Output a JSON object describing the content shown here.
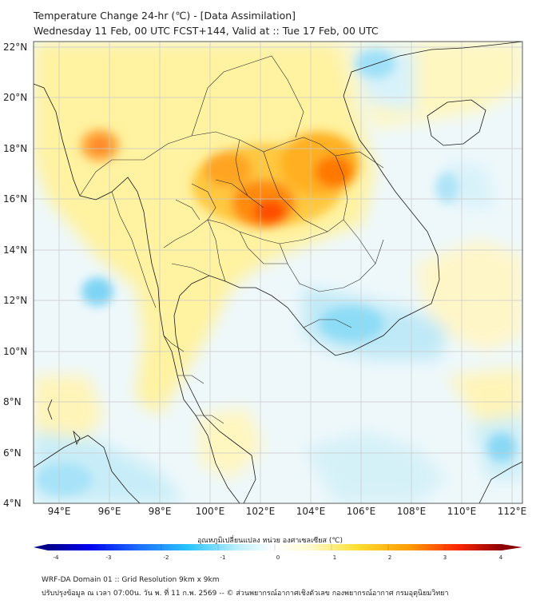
{
  "header": {
    "title": "Temperature Change 24-hr (℃) - [Data Assimilation]",
    "subtitle": "Wednesday 11 Feb, 00 UTC FCST+144, Valid at :: Tue 17 Feb, 00 UTC"
  },
  "map": {
    "lat_labels": [
      "22°N",
      "20°N",
      "18°N",
      "16°N",
      "14°N",
      "12°N",
      "10°N",
      "8°N",
      "6°N",
      "4°N"
    ],
    "lon_labels": [
      "94°E",
      "96°E",
      "98°E",
      "100°E",
      "102°E",
      "104°E",
      "106°E",
      "108°E",
      "110°E",
      "112°E"
    ],
    "lat_range": [
      4,
      22
    ],
    "lon_range": [
      93,
      112.4
    ]
  },
  "colorbar": {
    "title": "อุณหภูมิเปลี่ยนแปลง หน่วย องศาเซลเซียส (℃)",
    "ticks": [
      "-4",
      "-3",
      "-2",
      "-1",
      "0",
      "1",
      "2",
      "3",
      "4"
    ],
    "colors": [
      "#00008b",
      "#0000ff",
      "#1e6fff",
      "#29c5ff",
      "#bff0ff",
      "#ffffff",
      "#fffacd",
      "#ffe033",
      "#ff9a00",
      "#ff2a00",
      "#8b0000"
    ]
  },
  "footer": {
    "line1": "WRF-DA Domain 01 :: Grid Resolution 9km x 9km",
    "line2": "ปรับปรุงข้อมูล ณ เวลา 07:00น. วัน พ. ที่ 11 ก.พ. 2569 -- © ส่วนพยากรณ์อากาศเชิงตัวเลข กองพยากรณ์อากาศ กรมอุตุนิยมวิทยา"
  }
}
